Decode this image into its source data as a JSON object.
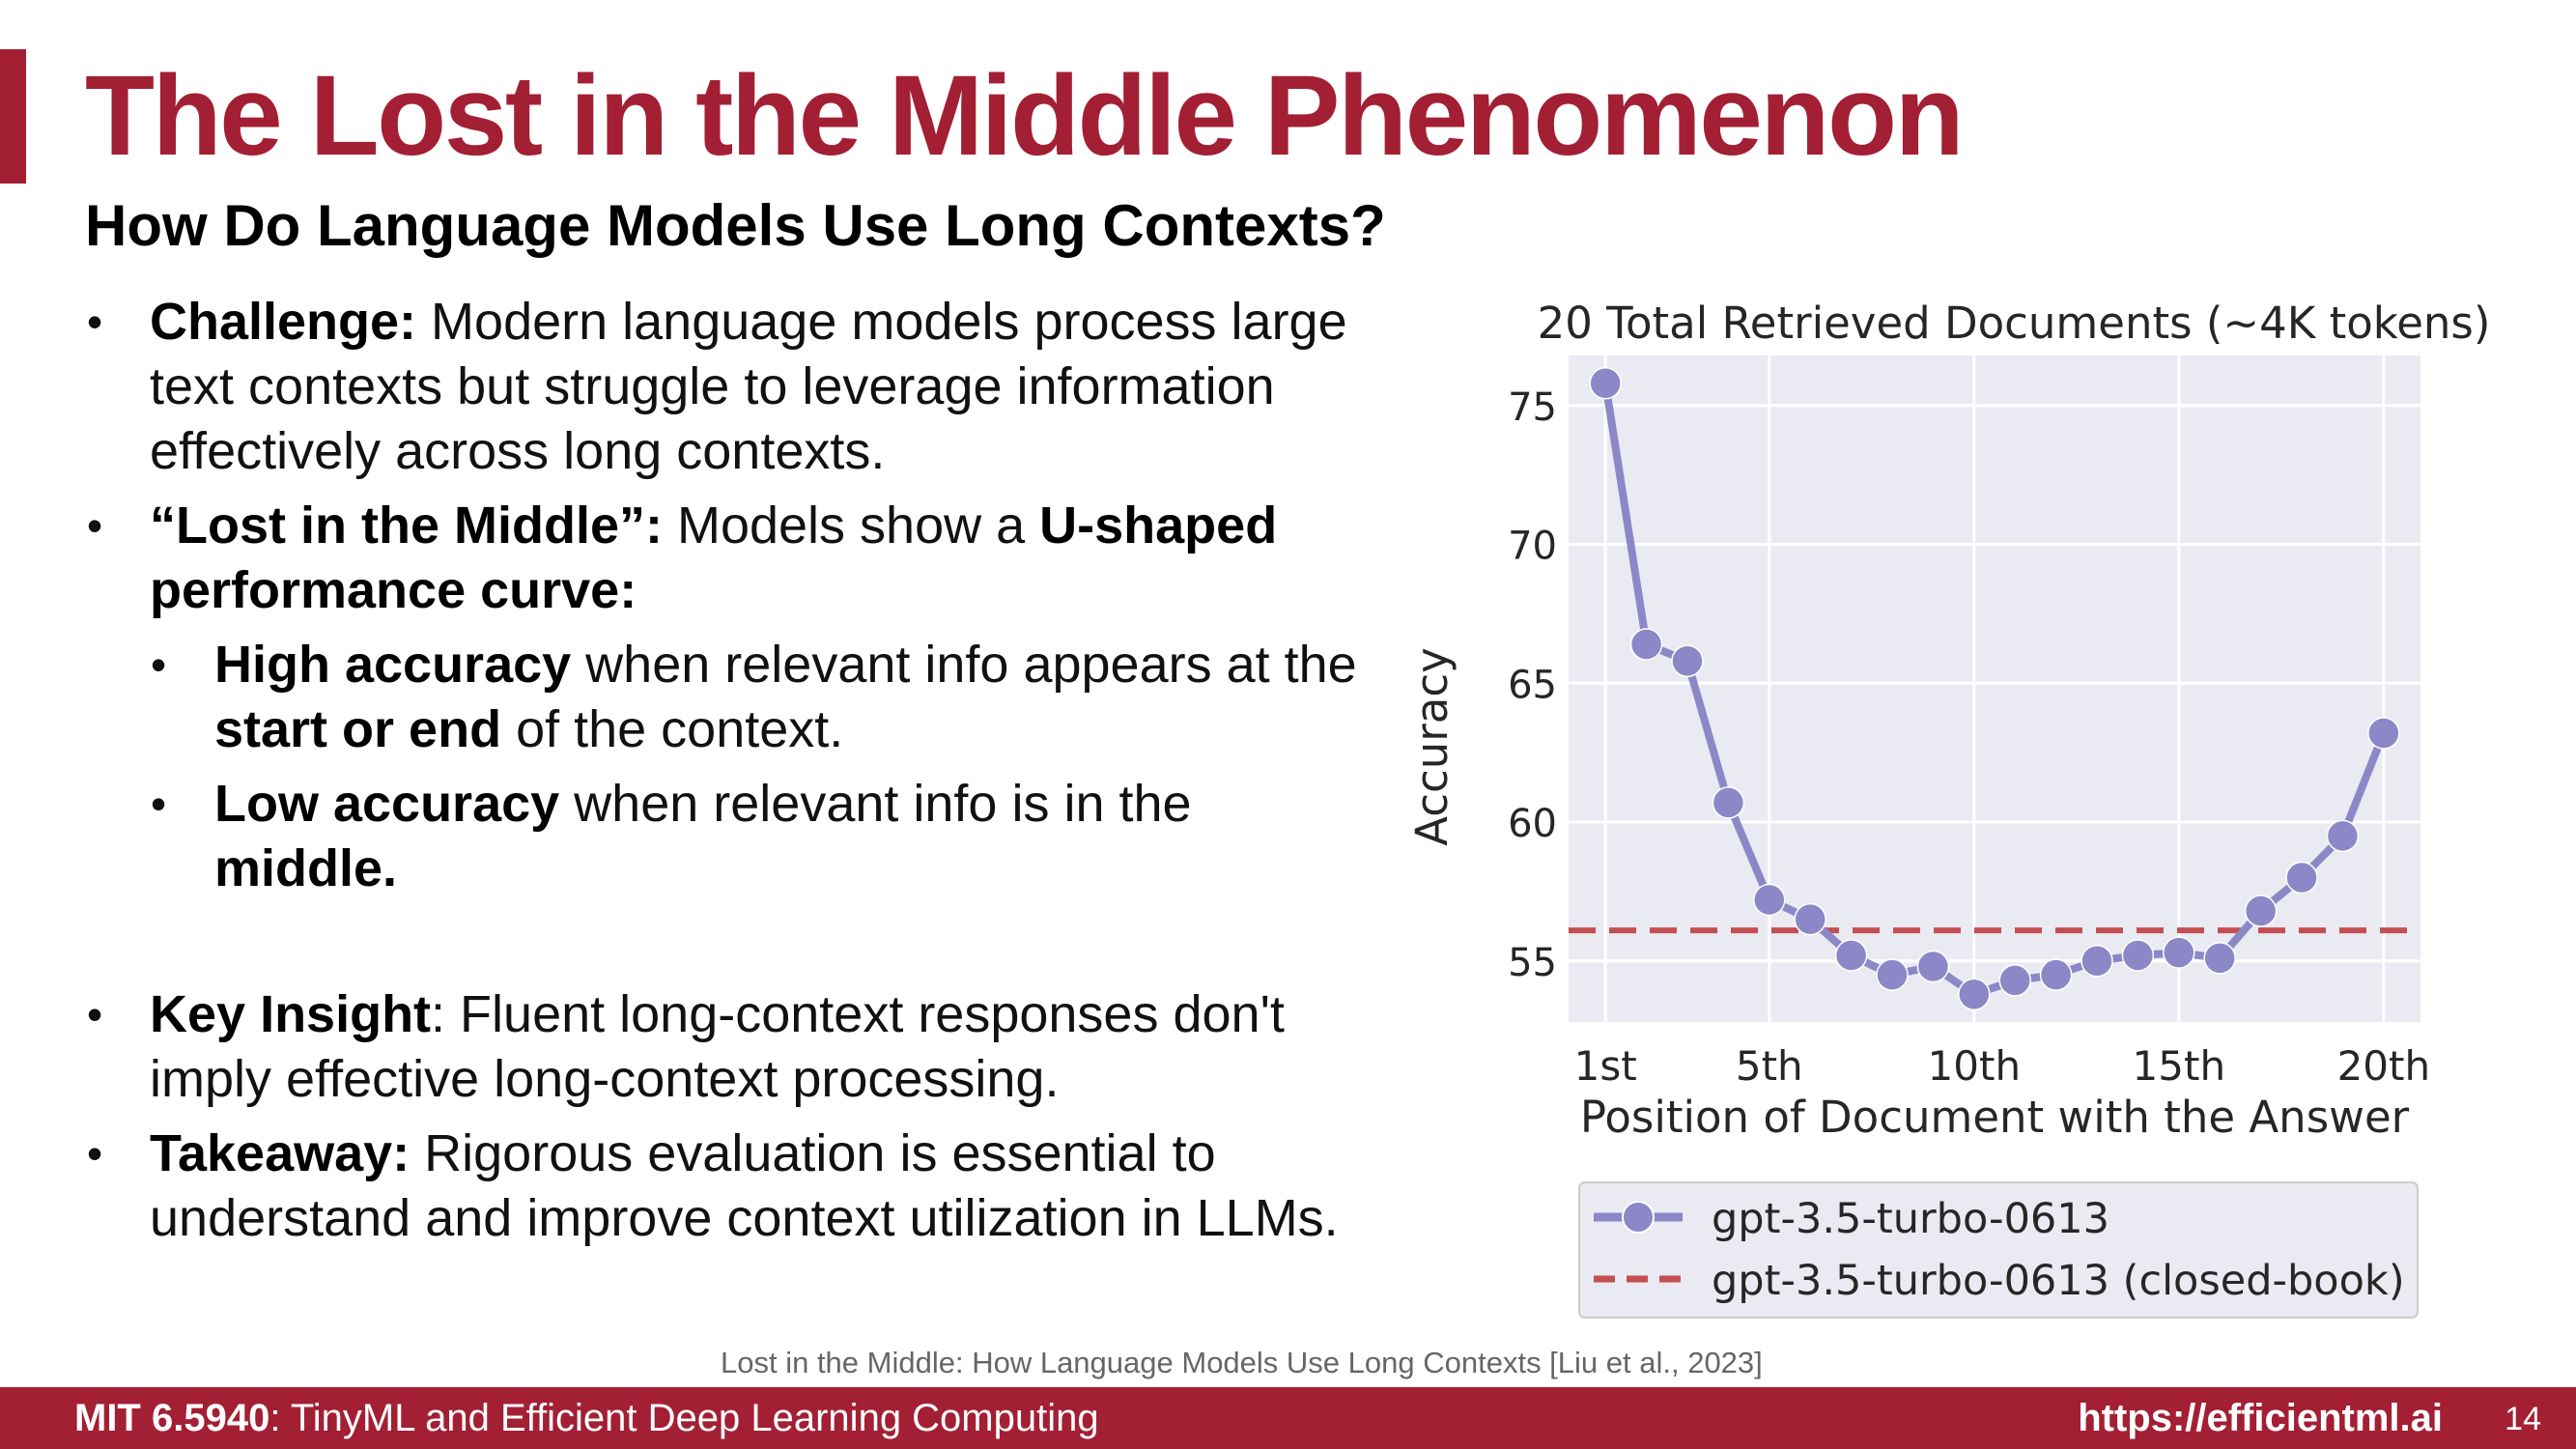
{
  "slide": {
    "title": "The Lost in the Middle Phenomenon",
    "subtitle": "How Do Language Models Use Long Contexts?",
    "accent_color": "#a31f34",
    "bullets": [
      {
        "bold": "Challenge:",
        "text": " Modern language models process large",
        "rest": "text contexts but struggle to leverage information",
        "rest2": "effectively across long contexts."
      },
      {
        "bold": "“Lost in the Middle”:",
        "text": " Models show a ",
        "bold2": "U-shaped",
        "rest_bold": "performance curve:"
      },
      {
        "bold": "High accuracy",
        "text": " when relevant info appears at the",
        "rest_bold": "start or end",
        "rest": " of the context."
      },
      {
        "bold": "Low accuracy",
        "text": " when relevant info is in the",
        "rest_bold": "middle."
      },
      {
        "bold": "Key Insight",
        "text": ": Fluent long-context responses don't",
        "rest": "imply effective long-context processing."
      },
      {
        "bold": "Takeaway:",
        "text": " Rigorous evaluation is essential to",
        "rest": "understand and improve context utilization in LLMs."
      }
    ],
    "citation": "Lost in the Middle: How Language Models Use Long Contexts [Liu et al., 2023]"
  },
  "footer": {
    "course_code": "MIT 6.5940",
    "course_name": ": TinyML and Efficient Deep Learning Computing",
    "url": "https://efficientml.ai",
    "page": "14"
  },
  "chart_data": {
    "type": "line",
    "title": "20 Total Retrieved Documents (~4K tokens)",
    "xlabel": "Position of Document with the Answer",
    "ylabel": "Accuracy",
    "x": [
      1,
      2,
      3,
      4,
      5,
      6,
      7,
      8,
      9,
      10,
      11,
      12,
      13,
      14,
      15,
      16,
      17,
      18,
      19,
      20
    ],
    "x_ticks": [
      1,
      5,
      10,
      15,
      20
    ],
    "x_tick_labels": [
      "1st",
      "5th",
      "10th",
      "15th",
      "20th"
    ],
    "y_ticks": [
      55,
      60,
      65,
      70,
      75
    ],
    "ylim": [
      52.8,
      76.8
    ],
    "xlim": [
      0.1,
      20.9
    ],
    "grid": true,
    "legend_position": "bottom",
    "series": [
      {
        "name": "gpt-3.5-turbo-0613",
        "color": "#8c87c7",
        "values": [
          75.8,
          66.4,
          65.8,
          60.7,
          57.2,
          56.5,
          55.2,
          54.5,
          54.8,
          53.8,
          54.3,
          54.5,
          55.0,
          55.2,
          55.3,
          55.1,
          56.8,
          58.0,
          59.5,
          63.2
        ]
      },
      {
        "name": "gpt-3.5-turbo-0613 (closed-book)",
        "color": "#c44e52",
        "dashed": true,
        "constant": 56.1
      }
    ]
  }
}
